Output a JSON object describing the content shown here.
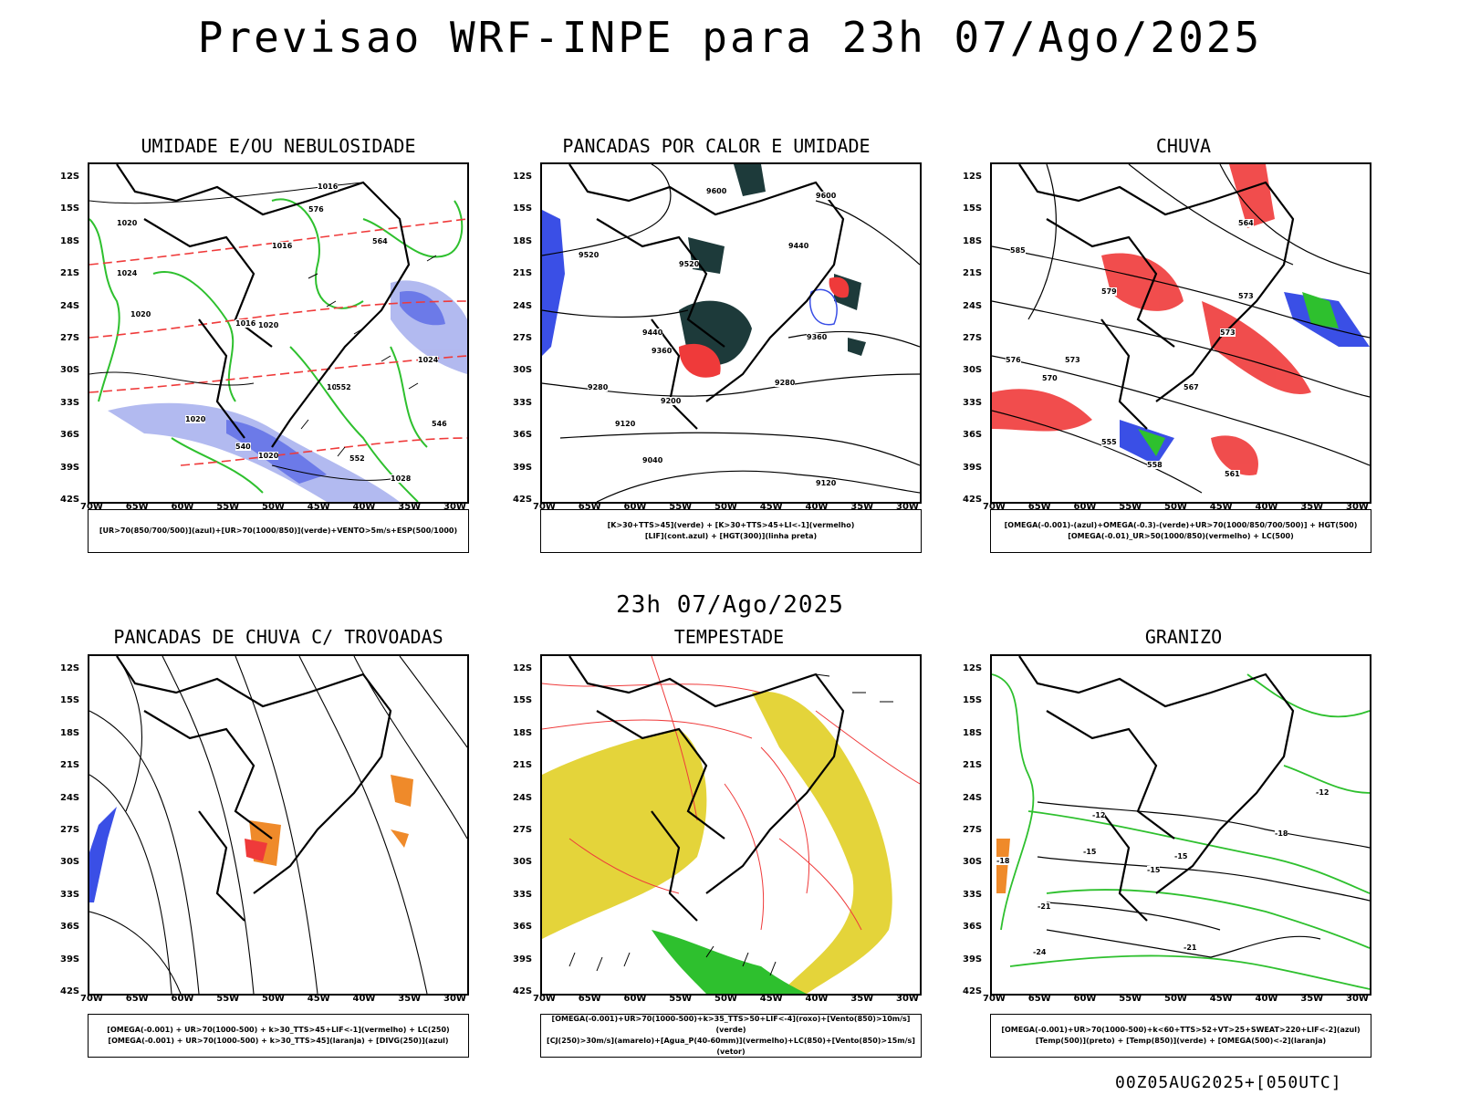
{
  "main_title": "Previsao WRF-INPE  para 23h 07/Ago/2025",
  "mid_title": "23h 07/Ago/2025",
  "stamp": "00Z05AUG2025+[050UTC]",
  "lat_ticks": [
    "12S",
    "15S",
    "18S",
    "21S",
    "24S",
    "27S",
    "30S",
    "33S",
    "36S",
    "39S",
    "42S"
  ],
  "lon_ticks": [
    "70W",
    "65W",
    "60W",
    "55W",
    "50W",
    "45W",
    "40W",
    "35W",
    "30W"
  ],
  "panels": [
    {
      "title": "UMIDADE E/OU NEBULOSIDADE",
      "legend": [
        "[UR>70(850/700/500)](azul)+[UR>70(1000/850)](verde)+VENTO>5m/s+ESP(500/1000)"
      ]
    },
    {
      "title": "PANCADAS POR CALOR E UMIDADE",
      "legend": [
        "[K>30+TTS>45](verde) + [K>30+TTS>45+LI<-1](vermelho)",
        "[LIF](cont.azul) + [HGT(300)](linha preta)"
      ]
    },
    {
      "title": "CHUVA",
      "legend": [
        "[OMEGA(-0.001)-(azul)+OMEGA(-0.3)-(verde)+UR>70(1000/850/700/500)] + HGT(500)",
        "[OMEGA(-0.01)_UR>50(1000/850)(vermelho) + LC(500)"
      ]
    },
    {
      "title": "PANCADAS DE CHUVA C/ TROVOADAS",
      "legend": [
        "[OMEGA(-0.001) + UR>70(1000-500) + k>30_TTS>45+LIF<-1](vermelho) + LC(250)",
        "[OMEGA(-0.001) + UR>70(1000-500) + k>30_TTS>45](laranja) + [DIVG(250)](azul)"
      ]
    },
    {
      "title": "TEMPESTADE",
      "legend": [
        "[OMEGA(-0.001)+UR>70(1000-500)+k>35_TTS>50+LIF<-4](roxo)+[Vento(850)>10m/s](verde)",
        "[CJ(250)>30m/s](amarelo)+[Agua_P(40-60mm)](vermelho)+LC(850)+[Vento(850)>15m/s](vetor)"
      ]
    },
    {
      "title": "GRANIZO",
      "legend": [
        "[OMEGA(-0.001)+UR>70(1000-500)+k<60+TTS>52+VT>25+SWEAT>220+LIF<-2](azul)",
        "[Temp(500)](preto) + [Temp(850)](verde) + [OMEGA(500)<-2](laranja)"
      ]
    }
  ],
  "contour_labels": {
    "p1": [
      "1016",
      "1016",
      "1020",
      "1024",
      "1020",
      "1016",
      "1020",
      "1024",
      "1020",
      "1024",
      "1020",
      "1028",
      "552",
      "576",
      "564",
      "546",
      "540",
      "552"
    ],
    "p2": [
      "9600",
      "9520",
      "9520",
      "9440",
      "9600",
      "9440",
      "9360",
      "9360",
      "9280",
      "9200",
      "9120",
      "9040",
      "9120",
      "9280"
    ],
    "p3": [
      "585",
      "573",
      "573",
      "579",
      "573",
      "570",
      "567",
      "561",
      "558",
      "576",
      "564",
      "555"
    ],
    "p6": [
      "-12",
      "-15",
      "-18",
      "-21",
      "-24",
      "-15",
      "-18",
      "-21",
      "-15",
      "-12"
    ]
  },
  "colors": {
    "blue": "#3a4fe6",
    "green": "#2ec02e",
    "red": "#ef3a3a",
    "orange": "#ef8a2a",
    "yellow": "#e4d43a",
    "darkgreen": "#1d3a3a",
    "lavender": "#aab2ee"
  }
}
